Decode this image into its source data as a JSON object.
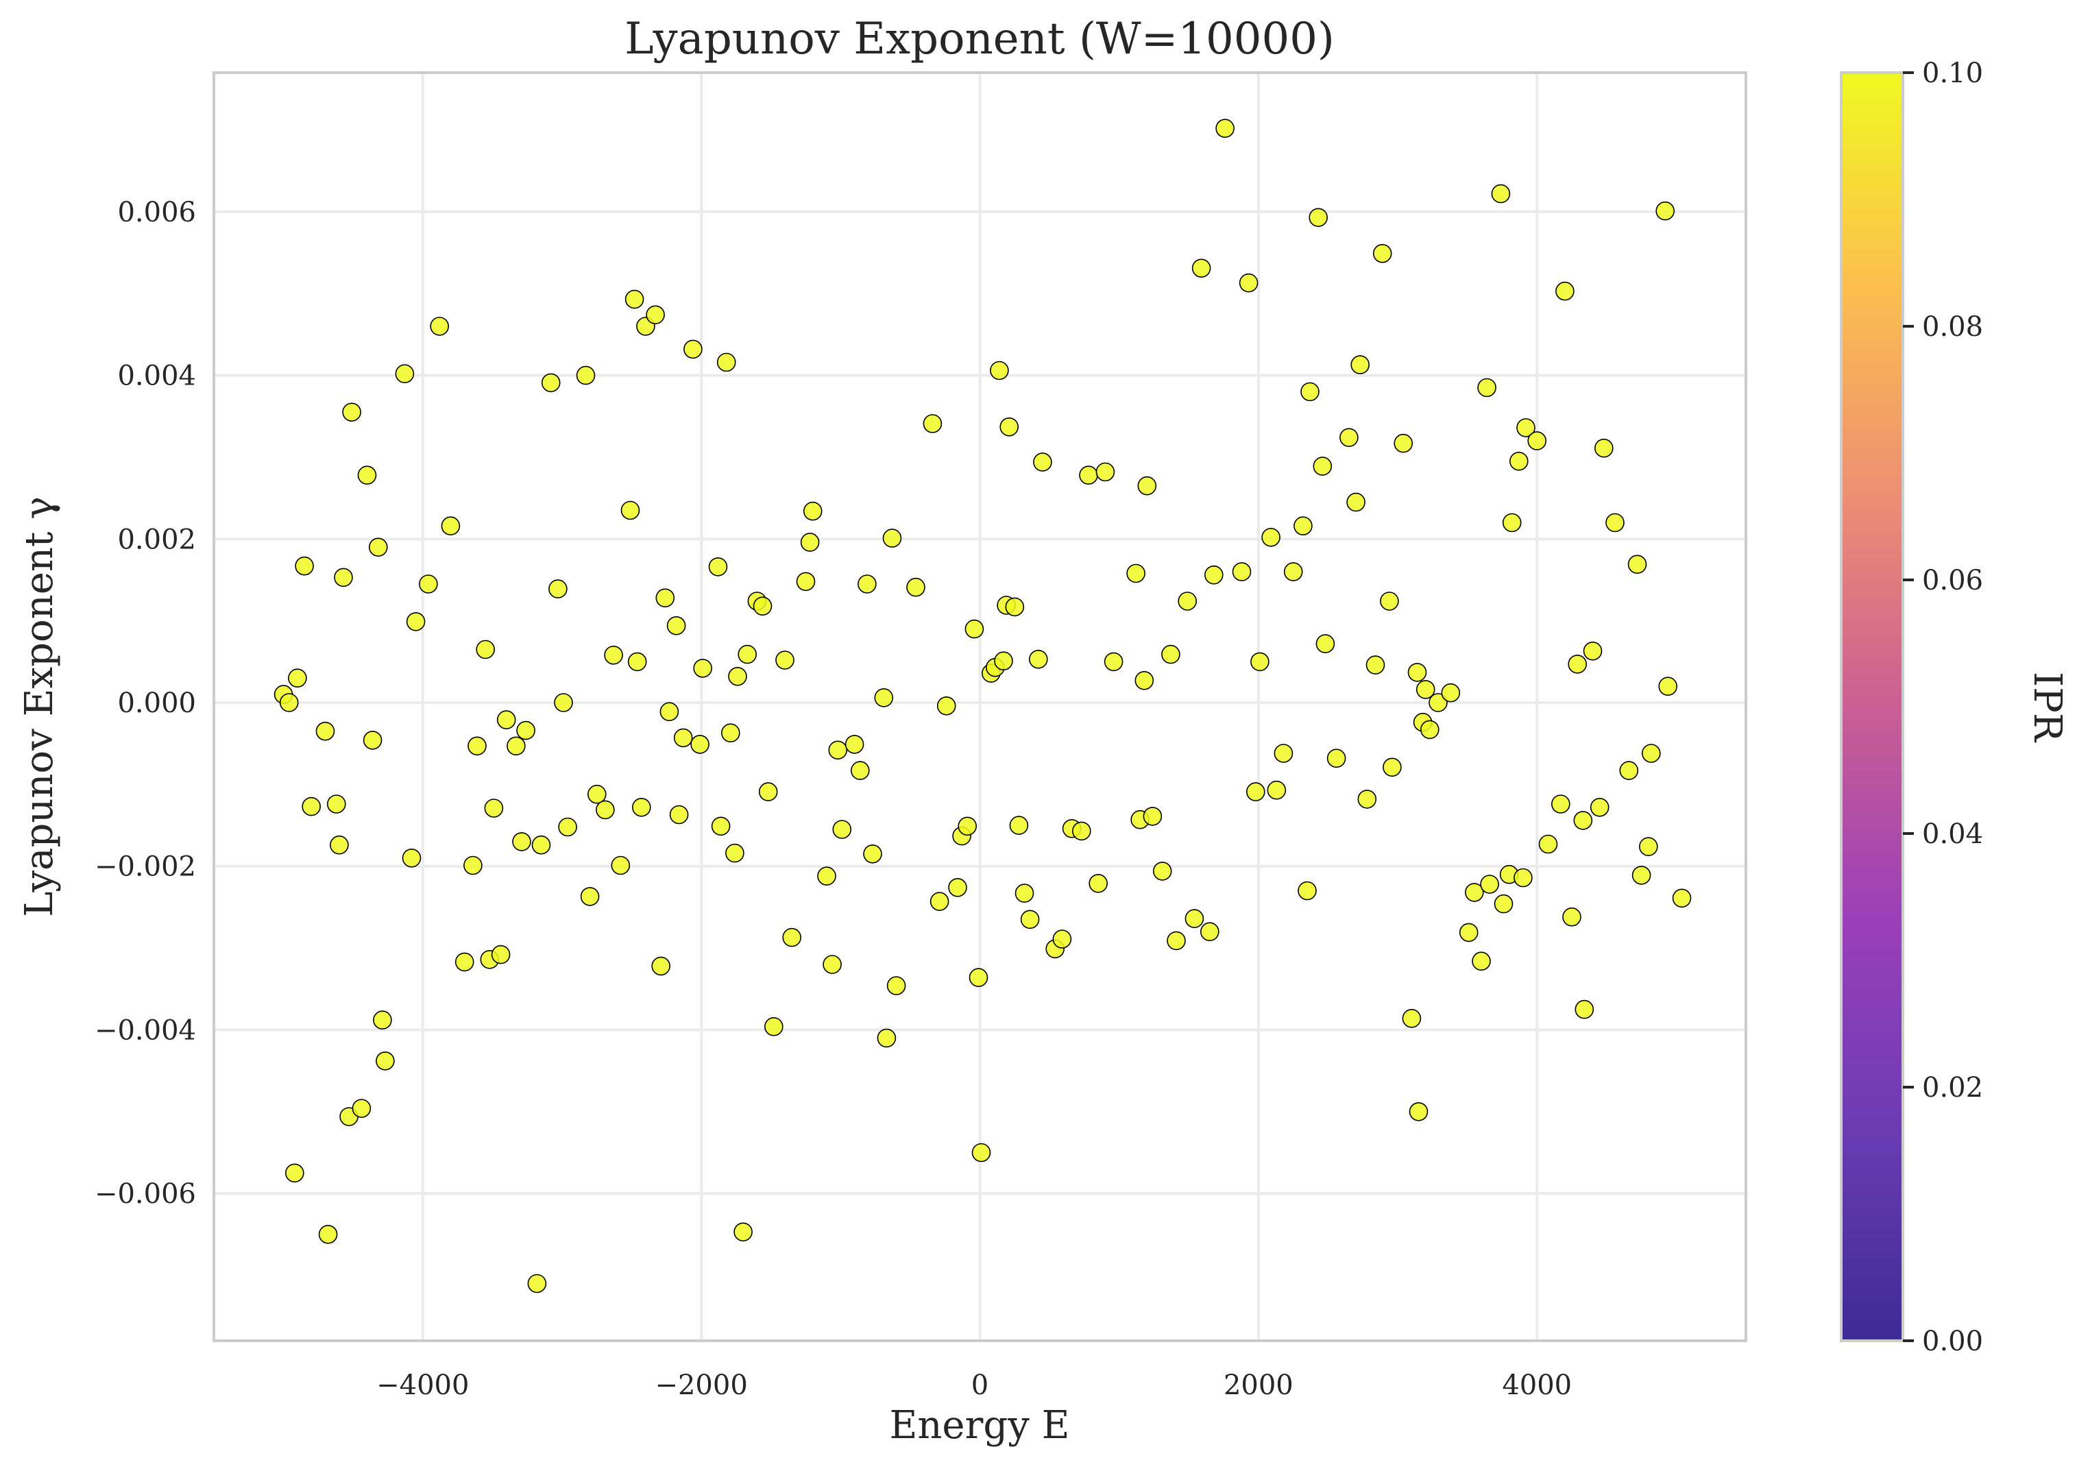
{
  "chart_data": {
    "type": "scatter",
    "title": "Lyapunov Exponent (W=10000)",
    "xlabel": "Energy E",
    "ylabel": "Lyapunov Exponent γ",
    "xlim": [
      -5500,
      5500
    ],
    "ylim": [
      -0.0078,
      0.0077
    ],
    "xticks": [
      -4000,
      -2000,
      0,
      2000,
      4000
    ],
    "xtick_labels": [
      "−4000",
      "−2000",
      "0",
      "2000",
      "4000"
    ],
    "yticks": [
      -0.006,
      -0.004,
      -0.002,
      0.0,
      0.002,
      0.004,
      0.006
    ],
    "ytick_labels": [
      "−0.006",
      "−0.004",
      "−0.002",
      "0.000",
      "0.002",
      "0.004",
      "0.006"
    ],
    "grid": true,
    "point_color": "#f0f921",
    "point_edge_color": "#000000",
    "colorbar": {
      "label": "IPR",
      "range": [
        0.0,
        0.1
      ],
      "ticks": [
        0.0,
        0.02,
        0.04,
        0.06,
        0.08,
        0.1
      ],
      "tick_labels": [
        "0.00",
        "0.02",
        "0.04",
        "0.06",
        "0.08",
        "0.10"
      ],
      "colormap": [
        "#3d2a96",
        "#6a3cb3",
        "#9b3fb8",
        "#c95f93",
        "#ec8f72",
        "#fcbf4d",
        "#f0f921"
      ]
    },
    "points": [
      [
        -5000,
        0.0001
      ],
      [
        -4960,
        0.0
      ],
      [
        -4900,
        0.0003
      ],
      [
        -4850,
        0.00167
      ],
      [
        -4800,
        -0.00127
      ],
      [
        -4700,
        -0.00035
      ],
      [
        -4920,
        -0.00575
      ],
      [
        -4680,
        -0.0065
      ],
      [
        -4620,
        -0.00124
      ],
      [
        -4600,
        -0.00174
      ],
      [
        -4570,
        0.00153
      ],
      [
        -4530,
        -0.00506
      ],
      [
        -4510,
        0.00355
      ],
      [
        -4440,
        -0.00496
      ],
      [
        -4400,
        0.00278
      ],
      [
        -4360,
        -0.00046
      ],
      [
        -4320,
        0.0019
      ],
      [
        -4290,
        -0.00388
      ],
      [
        -4270,
        -0.00438
      ],
      [
        -4130,
        0.00402
      ],
      [
        -4080,
        -0.0019
      ],
      [
        -4050,
        0.00099
      ],
      [
        -3960,
        0.00145
      ],
      [
        -3880,
        0.0046
      ],
      [
        -3800,
        0.00216
      ],
      [
        -3700,
        -0.00317
      ],
      [
        -3640,
        -0.00199
      ],
      [
        -3610,
        -0.00053
      ],
      [
        -3550,
        0.00065
      ],
      [
        -3520,
        -0.00314
      ],
      [
        -3490,
        -0.00129
      ],
      [
        -3440,
        -0.00308
      ],
      [
        -3400,
        -0.00021
      ],
      [
        -3330,
        -0.00053
      ],
      [
        -3290,
        -0.0017
      ],
      [
        -3260,
        -0.00034
      ],
      [
        -3180,
        -0.0071
      ],
      [
        -3150,
        -0.00174
      ],
      [
        -3080,
        0.00391
      ],
      [
        -3030,
        0.00139
      ],
      [
        -2990,
        0.0
      ],
      [
        -2960,
        -0.00152
      ],
      [
        -2830,
        0.004
      ],
      [
        -2800,
        -0.00237
      ],
      [
        -2750,
        -0.00112
      ],
      [
        -2690,
        -0.00131
      ],
      [
        -2630,
        0.00058
      ],
      [
        -2580,
        -0.00199
      ],
      [
        -2510,
        0.00235
      ],
      [
        -2480,
        0.00493
      ],
      [
        -2460,
        0.0005
      ],
      [
        -2430,
        -0.00128
      ],
      [
        -2400,
        0.0046
      ],
      [
        -2330,
        0.00474
      ],
      [
        -2290,
        -0.00322
      ],
      [
        -2260,
        0.00128
      ],
      [
        -2230,
        -0.00011
      ],
      [
        -2180,
        0.00094
      ],
      [
        -2160,
        -0.00137
      ],
      [
        -2130,
        -0.00043
      ],
      [
        -2060,
        0.00432
      ],
      [
        -2010,
        -0.00051
      ],
      [
        -1990,
        0.00042
      ],
      [
        -1880,
        0.00166
      ],
      [
        -1860,
        -0.00151
      ],
      [
        -1820,
        0.00416
      ],
      [
        -1790,
        -0.00037
      ],
      [
        -1760,
        -0.00184
      ],
      [
        -1740,
        0.00032
      ],
      [
        -1700,
        -0.00647
      ],
      [
        -1670,
        0.00059
      ],
      [
        -1600,
        0.00124
      ],
      [
        -1560,
        0.00118
      ],
      [
        -1520,
        -0.00109
      ],
      [
        -1480,
        -0.00396
      ],
      [
        -1400,
        0.00052
      ],
      [
        -1350,
        -0.00287
      ],
      [
        -1250,
        0.00148
      ],
      [
        -1220,
        0.00196
      ],
      [
        -1200,
        0.00234
      ],
      [
        -1100,
        -0.00212
      ],
      [
        -1060,
        -0.0032
      ],
      [
        -1020,
        -0.00058
      ],
      [
        -990,
        -0.00155
      ],
      [
        -900,
        -0.00051
      ],
      [
        -860,
        -0.00083
      ],
      [
        -810,
        0.00145
      ],
      [
        -770,
        -0.00185
      ],
      [
        -690,
        6e-05
      ],
      [
        -670,
        -0.0041
      ],
      [
        -630,
        0.00201
      ],
      [
        -600,
        -0.00346
      ],
      [
        -460,
        0.00141
      ],
      [
        -340,
        0.00341
      ],
      [
        -290,
        -0.00243
      ],
      [
        -240,
        -4e-05
      ],
      [
        -160,
        -0.00226
      ],
      [
        -130,
        -0.00163
      ],
      [
        -90,
        -0.00151
      ],
      [
        -40,
        0.0009
      ],
      [
        -10,
        -0.00336
      ],
      [
        10,
        -0.0055
      ],
      [
        80,
        0.00036
      ],
      [
        110,
        0.00043
      ],
      [
        140,
        0.00406
      ],
      [
        170,
        0.00051
      ],
      [
        190,
        0.00119
      ],
      [
        210,
        0.00337
      ],
      [
        250,
        0.00117
      ],
      [
        280,
        -0.0015
      ],
      [
        320,
        -0.00233
      ],
      [
        360,
        -0.00265
      ],
      [
        420,
        0.00053
      ],
      [
        450,
        0.00294
      ],
      [
        540,
        -0.00301
      ],
      [
        590,
        -0.00289
      ],
      [
        660,
        -0.00154
      ],
      [
        730,
        -0.00157
      ],
      [
        780,
        0.00278
      ],
      [
        850,
        -0.00221
      ],
      [
        900,
        0.00282
      ],
      [
        960,
        0.0005
      ],
      [
        1120,
        0.00158
      ],
      [
        1150,
        -0.00143
      ],
      [
        1180,
        0.00027
      ],
      [
        1200,
        0.00265
      ],
      [
        1240,
        -0.00139
      ],
      [
        1310,
        -0.00206
      ],
      [
        1370,
        0.00059
      ],
      [
        1410,
        -0.00291
      ],
      [
        1490,
        0.00124
      ],
      [
        1540,
        -0.00264
      ],
      [
        1590,
        0.00531
      ],
      [
        1650,
        -0.0028
      ],
      [
        1680,
        0.00156
      ],
      [
        1760,
        0.00702
      ],
      [
        1880,
        0.0016
      ],
      [
        1930,
        0.00513
      ],
      [
        1980,
        -0.00109
      ],
      [
        2010,
        0.0005
      ],
      [
        2090,
        0.00202
      ],
      [
        2130,
        -0.00107
      ],
      [
        2180,
        -0.00062
      ],
      [
        2250,
        0.0016
      ],
      [
        2320,
        0.00216
      ],
      [
        2350,
        -0.0023
      ],
      [
        2370,
        0.0038
      ],
      [
        2430,
        0.00593
      ],
      [
        2460,
        0.00289
      ],
      [
        2480,
        0.00072
      ],
      [
        2560,
        -0.00068
      ],
      [
        2650,
        0.00324
      ],
      [
        2700,
        0.00245
      ],
      [
        2730,
        0.00413
      ],
      [
        2780,
        -0.00118
      ],
      [
        2840,
        0.00046
      ],
      [
        2890,
        0.00549
      ],
      [
        2940,
        0.00124
      ],
      [
        2960,
        -0.00079
      ],
      [
        3040,
        0.00317
      ],
      [
        3100,
        -0.00386
      ],
      [
        3140,
        0.00037
      ],
      [
        3150,
        -0.005
      ],
      [
        3180,
        -0.00024
      ],
      [
        3200,
        0.00016
      ],
      [
        3230,
        -0.00033
      ],
      [
        3290,
        0.0
      ],
      [
        3380,
        0.00012
      ],
      [
        3510,
        -0.00281
      ],
      [
        3550,
        -0.00232
      ],
      [
        3600,
        -0.00316
      ],
      [
        3640,
        0.00385
      ],
      [
        3660,
        -0.00222
      ],
      [
        3740,
        0.00622
      ],
      [
        3760,
        -0.00246
      ],
      [
        3800,
        -0.0021
      ],
      [
        3820,
        0.0022
      ],
      [
        3870,
        0.00295
      ],
      [
        3900,
        -0.00214
      ],
      [
        3920,
        0.00336
      ],
      [
        4000,
        0.0032
      ],
      [
        4080,
        -0.00173
      ],
      [
        4170,
        -0.00124
      ],
      [
        4200,
        0.00503
      ],
      [
        4250,
        -0.00262
      ],
      [
        4290,
        0.00047
      ],
      [
        4330,
        -0.00144
      ],
      [
        4340,
        -0.00375
      ],
      [
        4400,
        0.00063
      ],
      [
        4450,
        -0.00128
      ],
      [
        4480,
        0.00311
      ],
      [
        4560,
        0.0022
      ],
      [
        4660,
        -0.00083
      ],
      [
        4720,
        0.00169
      ],
      [
        4750,
        -0.00211
      ],
      [
        4800,
        -0.00176
      ],
      [
        4820,
        -0.00062
      ],
      [
        4920,
        0.00601
      ],
      [
        4940,
        0.0002
      ],
      [
        5040,
        -0.00239
      ]
    ]
  }
}
